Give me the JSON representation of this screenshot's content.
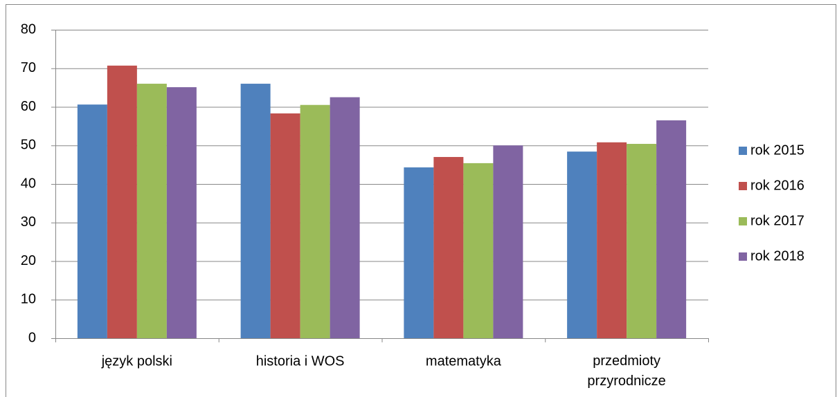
{
  "chart_data": {
    "type": "bar",
    "categories": [
      "język polski",
      "historia i WOS",
      "matematyka",
      "przedmioty przyrodnicze"
    ],
    "series": [
      {
        "name": "rok 2015",
        "color": "#4f81bd",
        "values": [
          60.6,
          66.0,
          44.3,
          48.4
        ]
      },
      {
        "name": "rok 2016",
        "color": "#c0504d",
        "values": [
          70.7,
          58.3,
          47.0,
          50.8
        ]
      },
      {
        "name": "rok 2017",
        "color": "#9bbb59",
        "values": [
          66.0,
          60.5,
          45.4,
          50.4
        ]
      },
      {
        "name": "rok 2018",
        "color": "#8064a2",
        "values": [
          65.1,
          62.5,
          50.0,
          56.5
        ]
      }
    ],
    "ylim": [
      0,
      80
    ],
    "yticks": [
      0,
      10,
      20,
      30,
      40,
      50,
      60,
      70,
      80
    ],
    "grid": true,
    "legend": "right"
  }
}
